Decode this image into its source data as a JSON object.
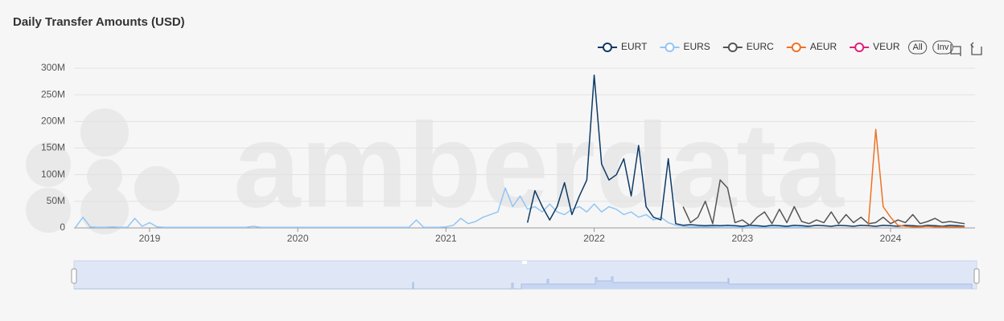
{
  "chart_data": {
    "type": "line",
    "title": "Daily Transfer Amounts (USD)",
    "watermark": "amberdata",
    "legend_buttons": [
      "All",
      "Inv"
    ],
    "legend_position": "top-right",
    "grid": true,
    "xlim": [
      2018.49,
      2024.57
    ],
    "xticks": [
      2019,
      2020,
      2021,
      2022,
      2023,
      2024
    ],
    "ylim": [
      0,
      300
    ],
    "yticks": [
      0,
      {
        "value": 50,
        "label": "50M"
      },
      {
        "value": 100,
        "label": "100M"
      },
      {
        "value": 150,
        "label": "150M"
      },
      {
        "value": 200,
        "label": "200M"
      },
      {
        "value": 250,
        "label": "250M"
      },
      {
        "value": 300,
        "label": "300M"
      }
    ],
    "x": [
      2018.5,
      2018.55,
      2018.6,
      2018.65,
      2018.7,
      2018.75,
      2018.8,
      2018.85,
      2018.9,
      2018.95,
      2019,
      2019.05,
      2019.1,
      2019.15,
      2019.2,
      2019.25,
      2019.3,
      2019.35,
      2019.4,
      2019.45,
      2019.5,
      2019.55,
      2019.6,
      2019.65,
      2019.7,
      2019.75,
      2019.8,
      2019.85,
      2019.9,
      2019.95,
      2020,
      2020.05,
      2020.1,
      2020.15,
      2020.2,
      2020.25,
      2020.3,
      2020.35,
      2020.4,
      2020.45,
      2020.5,
      2020.55,
      2020.6,
      2020.65,
      2020.7,
      2020.75,
      2020.8,
      2020.85,
      2020.9,
      2020.95,
      2021,
      2021.05,
      2021.1,
      2021.15,
      2021.2,
      2021.25,
      2021.3,
      2021.35,
      2021.4,
      2021.45,
      2021.5,
      2021.55,
      2021.6,
      2021.65,
      2021.7,
      2021.75,
      2021.8,
      2021.85,
      2021.9,
      2021.95,
      2022,
      2022.05,
      2022.1,
      2022.15,
      2022.2,
      2022.25,
      2022.3,
      2022.35,
      2022.4,
      2022.45,
      2022.5,
      2022.55,
      2022.6,
      2022.65,
      2022.7,
      2022.75,
      2022.8,
      2022.85,
      2022.9,
      2022.95,
      2023,
      2023.05,
      2023.1,
      2023.15,
      2023.2,
      2023.25,
      2023.3,
      2023.35,
      2023.4,
      2023.45,
      2023.5,
      2023.55,
      2023.6,
      2023.65,
      2023.7,
      2023.75,
      2023.8,
      2023.85,
      2023.9,
      2023.95,
      2024,
      2024.05,
      2024.1,
      2024.15,
      2024.2,
      2024.25,
      2024.3,
      2024.35,
      2024.4,
      2024.45,
      2024.5
    ],
    "series": [
      {
        "name": "EURT",
        "color": "#0e3a66",
        "values": [
          null,
          null,
          null,
          null,
          null,
          null,
          null,
          null,
          null,
          null,
          null,
          null,
          null,
          null,
          null,
          null,
          null,
          null,
          null,
          null,
          null,
          null,
          null,
          null,
          null,
          null,
          null,
          null,
          null,
          null,
          null,
          null,
          null,
          null,
          null,
          null,
          null,
          null,
          null,
          null,
          null,
          null,
          null,
          null,
          null,
          null,
          null,
          null,
          null,
          null,
          null,
          null,
          null,
          null,
          null,
          null,
          null,
          null,
          null,
          null,
          null,
          10,
          70,
          40,
          15,
          40,
          85,
          25,
          60,
          90,
          287,
          120,
          90,
          100,
          130,
          60,
          155,
          40,
          20,
          15,
          130,
          8,
          5,
          6,
          5,
          4,
          5,
          4,
          5,
          4,
          3,
          5,
          4,
          3,
          5,
          4,
          3,
          5,
          4,
          3,
          5,
          4,
          3,
          5,
          4,
          3,
          5,
          4,
          3,
          5,
          4,
          3,
          5,
          4,
          3,
          5,
          4,
          3,
          5,
          4,
          3
        ]
      },
      {
        "name": "EURS",
        "color": "#93c5f5",
        "values": [
          1,
          20,
          2,
          1,
          1,
          2,
          1,
          1,
          18,
          3,
          10,
          2,
          1,
          1,
          1,
          1,
          1,
          1,
          1,
          1,
          1,
          1,
          1,
          1,
          3,
          1,
          1,
          1,
          1,
          1,
          1,
          1,
          1,
          1,
          1,
          1,
          1,
          1,
          1,
          1,
          1,
          1,
          1,
          1,
          1,
          1,
          15,
          1,
          1,
          1,
          2,
          5,
          18,
          8,
          12,
          20,
          25,
          30,
          75,
          40,
          60,
          35,
          40,
          30,
          45,
          30,
          25,
          35,
          40,
          30,
          45,
          30,
          40,
          35,
          25,
          30,
          20,
          25,
          15,
          20,
          10,
          5,
          3,
          2,
          2,
          2,
          2,
          1,
          1,
          1,
          1,
          1,
          1,
          1,
          1,
          1,
          1,
          1,
          1,
          1,
          null,
          null,
          null,
          null,
          null,
          null,
          null,
          null,
          null,
          null,
          null,
          null,
          null,
          null,
          null,
          null,
          null,
          null,
          null,
          null,
          null
        ]
      },
      {
        "name": "EURC",
        "color": "#555555",
        "values": [
          null,
          null,
          null,
          null,
          null,
          null,
          null,
          null,
          null,
          null,
          null,
          null,
          null,
          null,
          null,
          null,
          null,
          null,
          null,
          null,
          null,
          null,
          null,
          null,
          null,
          null,
          null,
          null,
          null,
          null,
          null,
          null,
          null,
          null,
          null,
          null,
          null,
          null,
          null,
          null,
          null,
          null,
          null,
          null,
          null,
          null,
          null,
          null,
          null,
          null,
          null,
          null,
          null,
          null,
          null,
          null,
          null,
          null,
          null,
          null,
          null,
          null,
          null,
          null,
          null,
          null,
          null,
          null,
          null,
          null,
          null,
          null,
          null,
          null,
          null,
          null,
          null,
          null,
          null,
          null,
          null,
          null,
          40,
          10,
          20,
          50,
          8,
          90,
          75,
          10,
          15,
          5,
          20,
          30,
          8,
          35,
          10,
          40,
          12,
          8,
          15,
          10,
          30,
          8,
          25,
          10,
          20,
          8,
          10,
          20,
          8,
          15,
          10,
          25,
          8,
          12,
          18,
          10,
          12,
          10,
          8
        ]
      },
      {
        "name": "AEUR",
        "color": "#f07124",
        "values": [
          null,
          null,
          null,
          null,
          null,
          null,
          null,
          null,
          null,
          null,
          null,
          null,
          null,
          null,
          null,
          null,
          null,
          null,
          null,
          null,
          null,
          null,
          null,
          null,
          null,
          null,
          null,
          null,
          null,
          null,
          null,
          null,
          null,
          null,
          null,
          null,
          null,
          null,
          null,
          null,
          null,
          null,
          null,
          null,
          null,
          null,
          null,
          null,
          null,
          null,
          null,
          null,
          null,
          null,
          null,
          null,
          null,
          null,
          null,
          null,
          null,
          null,
          null,
          null,
          null,
          null,
          null,
          null,
          null,
          null,
          null,
          null,
          null,
          null,
          null,
          null,
          null,
          null,
          null,
          null,
          null,
          null,
          null,
          null,
          null,
          null,
          null,
          null,
          null,
          null,
          null,
          null,
          null,
          null,
          null,
          null,
          null,
          null,
          null,
          null,
          null,
          null,
          null,
          null,
          null,
          null,
          null,
          5,
          185,
          40,
          20,
          5,
          3,
          2,
          2,
          3,
          2,
          2,
          2,
          2,
          2
        ]
      },
      {
        "name": "VEUR",
        "color": "#e0207e",
        "values": [
          null,
          null,
          null,
          null,
          null,
          null,
          null,
          null,
          null,
          null,
          null,
          null,
          null,
          null,
          null,
          null,
          null,
          null,
          null,
          null,
          null,
          null,
          null,
          null,
          null,
          null,
          null,
          null,
          null,
          null,
          null,
          null,
          null,
          null,
          null,
          null,
          null,
          null,
          null,
          null,
          null,
          null,
          null,
          null,
          null,
          null,
          null,
          null,
          null,
          null,
          null,
          null,
          null,
          null,
          null,
          null,
          null,
          null,
          null,
          null,
          null,
          null,
          null,
          null,
          null,
          null,
          null,
          null,
          null,
          null,
          null,
          null,
          null,
          null,
          null,
          null,
          null,
          null,
          null,
          null,
          null,
          null,
          null,
          null,
          null,
          null,
          null,
          null,
          null,
          null,
          null,
          null,
          null,
          null,
          null,
          null,
          null,
          null,
          null,
          null,
          null,
          null,
          null,
          null,
          null,
          null,
          null,
          null,
          null,
          null,
          null,
          null,
          null,
          null,
          null,
          null,
          null,
          null,
          null,
          null,
          null
        ]
      }
    ]
  }
}
